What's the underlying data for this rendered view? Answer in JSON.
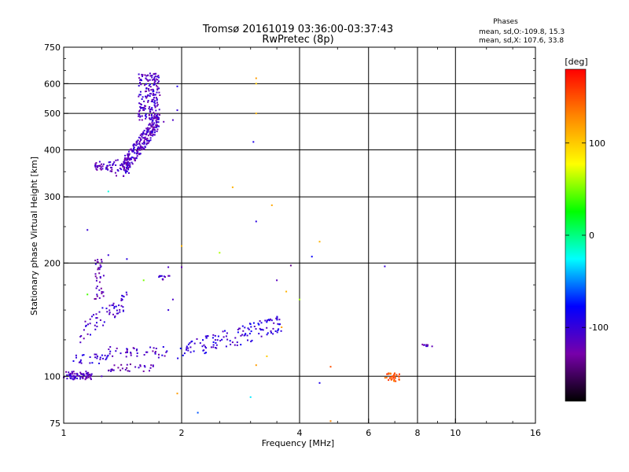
{
  "chart_data": {
    "type": "scatter",
    "title": "Tromsø 20161019 03:36:00-03:37:43",
    "subtitle": "RwPretec (8p)",
    "xlabel": "Frequency [MHz]",
    "ylabel": "Stationary phase Virtual Height [km]",
    "x_scale": "log2",
    "y_scale": "log",
    "xlim": [
      1,
      16
    ],
    "ylim": [
      75,
      750
    ],
    "x_ticks": [
      "1",
      "2",
      "4",
      "6",
      "8",
      "10",
      "16"
    ],
    "x_tick_values": [
      1,
      2,
      4,
      6,
      8,
      10,
      16
    ],
    "y_ticks": [
      "75",
      "100",
      "200",
      "300",
      "400",
      "500",
      "600",
      "750"
    ],
    "y_tick_values": [
      75,
      100,
      200,
      300,
      400,
      500,
      600,
      750
    ],
    "grid": true,
    "phases_title": "Phases",
    "phases_line1": "mean, sd,O:-109.8, 15.3",
    "phases_line2": "mean, sd,X: 107.6, 33.8",
    "colorbar": {
      "label": "[deg]",
      "range": [
        -180,
        180
      ],
      "ticks": [
        "-100",
        "0",
        "100"
      ],
      "tick_values": [
        -100,
        0,
        100
      ],
      "colors": [
        "#000000",
        "#7700aa",
        "#0000ff",
        "#00ffff",
        "#00ff00",
        "#ffff00",
        "#ff8800",
        "#ff0000"
      ]
    },
    "series": [
      {
        "kind": "cluster",
        "x": [
          1.0,
          1.18
        ],
        "y": [
          98,
          103
        ],
        "phase": -115,
        "n": 75
      },
      {
        "kind": "cluster",
        "x": [
          1.05,
          1.3
        ],
        "y": [
          108,
          115
        ],
        "phase": -100,
        "n": 30
      },
      {
        "kind": "cluster",
        "x": [
          1.3,
          1.7
        ],
        "y": [
          103,
          108
        ],
        "phase": -120,
        "n": 30
      },
      {
        "kind": "cluster",
        "x": [
          1.3,
          1.85
        ],
        "y": [
          112,
          120
        ],
        "phase": -110,
        "n": 40
      },
      {
        "kind": "curve",
        "x": [
          1.1,
          1.45
        ],
        "y": [
          130,
          160
        ],
        "phase": -110,
        "n": 60
      },
      {
        "kind": "cluster",
        "x": [
          1.2,
          1.27
        ],
        "y": [
          160,
          210
        ],
        "phase": -115,
        "n": 35
      },
      {
        "kind": "cluster",
        "x": [
          1.2,
          1.35
        ],
        "y": [
          350,
          372
        ],
        "phase": -115,
        "n": 40
      },
      {
        "kind": "cluster",
        "x": [
          1.35,
          1.47
        ],
        "y": [
          340,
          378
        ],
        "phase": -115,
        "n": 25
      },
      {
        "kind": "curve",
        "x": [
          1.42,
          1.75
        ],
        "y": [
          360,
          480
        ],
        "phase": -112,
        "n": 260
      },
      {
        "kind": "cluster",
        "x": [
          1.55,
          1.76
        ],
        "y": [
          480,
          640
        ],
        "phase": -112,
        "n": 180
      },
      {
        "kind": "cluster",
        "x": [
          1.75,
          1.88
        ],
        "y": [
          180,
          185
        ],
        "phase": -110,
        "n": 12
      },
      {
        "kind": "curve",
        "x": [
          1.95,
          3.6
        ],
        "y": [
          115,
          138
        ],
        "phase": -98,
        "n": 130
      },
      {
        "kind": "cluster",
        "x": [
          6.6,
          7.2
        ],
        "y": [
          97,
          102
        ],
        "phase": 150,
        "n": 35
      },
      {
        "kind": "cluster",
        "x": [
          8.2,
          8.8
        ],
        "y": [
          120,
          122
        ],
        "phase": -120,
        "n": 8
      },
      {
        "kind": "points",
        "pts": [
          [
            3.1,
            620,
            120
          ],
          [
            3.1,
            600,
            100
          ],
          [
            3.1,
            500,
            110
          ],
          [
            3.05,
            420,
            -90
          ],
          [
            2.7,
            318,
            110
          ],
          [
            3.4,
            285,
            115
          ],
          [
            3.1,
            258,
            -95
          ],
          [
            2.5,
            213,
            60
          ],
          [
            1.95,
            510,
            -100
          ],
          [
            1.95,
            590,
            -90
          ],
          [
            1.3,
            210,
            -100
          ],
          [
            1.45,
            205,
            -95
          ],
          [
            1.85,
            195,
            -110
          ],
          [
            2.0,
            195,
            -120
          ],
          [
            2.0,
            222,
            110
          ],
          [
            1.15,
            245,
            -100
          ],
          [
            1.3,
            310,
            -20
          ],
          [
            1.6,
            180,
            50
          ],
          [
            1.15,
            165,
            40
          ],
          [
            4.3,
            208,
            -80
          ],
          [
            4.5,
            228,
            110
          ],
          [
            4.0,
            160,
            60
          ],
          [
            3.7,
            168,
            110
          ],
          [
            3.6,
            135,
            120
          ],
          [
            3.5,
            180,
            -115
          ],
          [
            3.3,
            113,
            100
          ],
          [
            3.1,
            107,
            120
          ],
          [
            3.0,
            88,
            -30
          ],
          [
            4.8,
            106,
            150
          ],
          [
            4.5,
            96,
            -90
          ],
          [
            2.2,
            80,
            -60
          ],
          [
            1.95,
            90,
            120
          ],
          [
            6.6,
            196,
            -100
          ],
          [
            4.8,
            76,
            130
          ],
          [
            1.9,
            160,
            -110
          ],
          [
            1.85,
            150,
            -100
          ],
          [
            1.8,
            475,
            -120
          ],
          [
            1.9,
            480,
            -110
          ],
          [
            3.8,
            197,
            -140
          ],
          [
            1.25,
            100,
            -110
          ]
        ]
      }
    ]
  }
}
